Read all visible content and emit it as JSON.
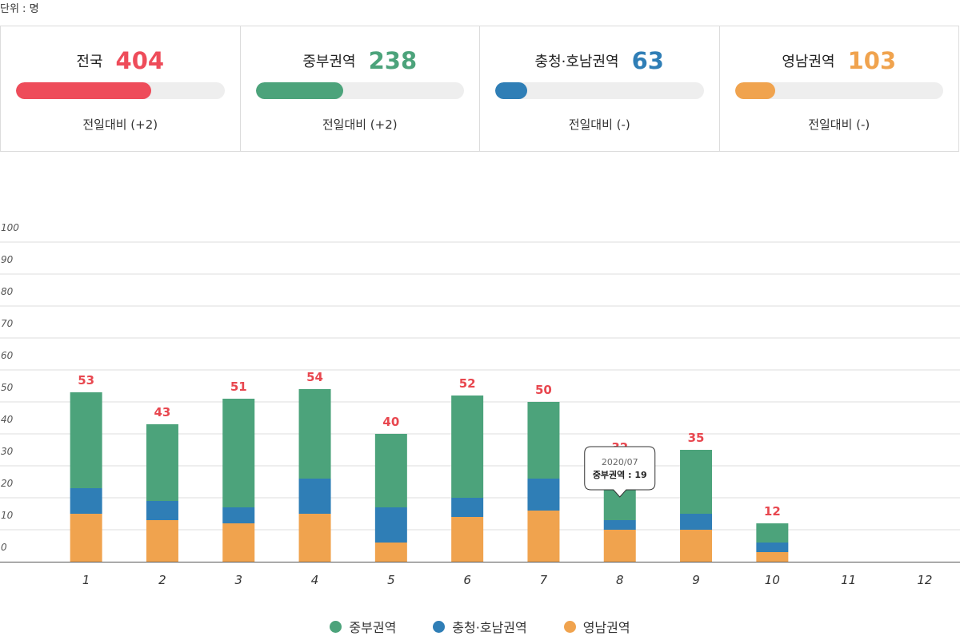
{
  "unit_label": "단위 : 명",
  "colors": {
    "national": "#ee4c5a",
    "central": "#4ca37b",
    "chungcheong_honam": "#2f7eb6",
    "yeongnam": "#f0a34e",
    "total_label": "#e8474f",
    "track": "#eeeeee"
  },
  "summary": [
    {
      "name": "전국",
      "value": "404",
      "fill": 0.65,
      "color": "#ee4c5a",
      "change": "전일대비 (+2)"
    },
    {
      "name": "중부권역",
      "value": "238",
      "fill": 0.42,
      "color": "#4ca37b",
      "change": "전일대비 (+2)"
    },
    {
      "name": "충청·호남권역",
      "value": "63",
      "fill": 0.155,
      "color": "#2f7eb6",
      "change": "전일대비 (-)"
    },
    {
      "name": "영남권역",
      "value": "103",
      "fill": 0.195,
      "color": "#f0a34e",
      "change": "전일대비 (-)"
    }
  ],
  "chart_data": {
    "type": "bar",
    "stacked": true,
    "categories": [
      "1",
      "2",
      "3",
      "4",
      "5",
      "6",
      "7",
      "8",
      "9",
      "10",
      "11",
      "12"
    ],
    "series": [
      {
        "name": "영남권역",
        "color": "#f0a34e",
        "values": [
          15,
          13,
          12,
          15,
          6,
          14,
          16,
          10,
          10,
          3,
          null,
          null
        ]
      },
      {
        "name": "충청·호남권역",
        "color": "#2f7eb6",
        "values": [
          8,
          6,
          5,
          11,
          11,
          6,
          10,
          3,
          5,
          3,
          null,
          null
        ]
      },
      {
        "name": "중부권역",
        "color": "#4ca37b",
        "values": [
          30,
          24,
          34,
          28,
          23,
          32,
          24,
          19,
          20,
          6,
          null,
          null
        ]
      }
    ],
    "totals": [
      53,
      43,
      51,
      54,
      40,
      52,
      50,
      32,
      35,
      12,
      null,
      null
    ],
    "ylim": [
      0,
      100
    ],
    "yticks": [
      "0",
      "10",
      "20",
      "30",
      "40",
      "50",
      "60",
      "70",
      "80",
      "90",
      "100"
    ],
    "grid": true,
    "legend_position": "bottom-center",
    "tooltip": {
      "category": "8",
      "title": "2020/07",
      "label": "중부권역 : ",
      "value": "19"
    }
  }
}
